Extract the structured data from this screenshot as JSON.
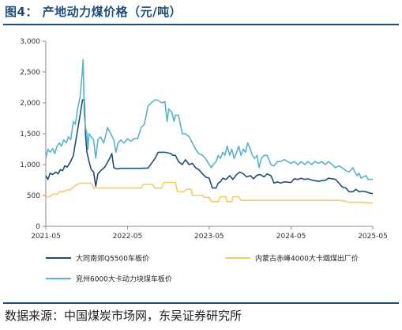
{
  "figure": {
    "title": "图4：  产地动力煤价格（元/吨）",
    "source": "数据来源：中国煤炭市场网，东吴证券研究所"
  },
  "chart_data": {
    "type": "line",
    "xlabel": "",
    "ylabel": "",
    "x_ticks": [
      "2021-05",
      "2022-05",
      "2023-05",
      "2024-05",
      "2025-05"
    ],
    "y_ticks": [
      "0",
      "500",
      "1,000",
      "1,500",
      "2,000",
      "2,500",
      "3,000"
    ],
    "ylim": [
      0,
      3000
    ],
    "xlim": [
      "2021-05-01",
      "2025-05-01"
    ],
    "grid": false,
    "legend_position": "bottom",
    "series": [
      {
        "name": "大同南郊Q5500车板价",
        "color": "#1f4e79",
        "points": [
          [
            "2021-05-01",
            820
          ],
          [
            "2021-05-10",
            760
          ],
          [
            "2021-05-20",
            860
          ],
          [
            "2021-06-01",
            840
          ],
          [
            "2021-06-15",
            880
          ],
          [
            "2021-06-25",
            850
          ],
          [
            "2021-07-05",
            920
          ],
          [
            "2021-07-15",
            900
          ],
          [
            "2021-07-25",
            980
          ],
          [
            "2021-08-05",
            960
          ],
          [
            "2021-08-20",
            1050
          ],
          [
            "2021-09-01",
            1150
          ],
          [
            "2021-09-15",
            1450
          ],
          [
            "2021-10-01",
            1800
          ],
          [
            "2021-10-12",
            2050
          ],
          [
            "2021-10-20",
            2060
          ],
          [
            "2021-10-25",
            1500
          ],
          [
            "2021-11-01",
            1200
          ],
          [
            "2021-11-10",
            1050
          ],
          [
            "2021-11-20",
            920
          ],
          [
            "2021-12-01",
            880
          ],
          [
            "2021-12-10",
            650
          ],
          [
            "2021-12-20",
            850
          ],
          [
            "2022-01-01",
            900
          ],
          [
            "2022-01-20",
            960
          ],
          [
            "2022-02-10",
            1100
          ],
          [
            "2022-02-20",
            1180
          ],
          [
            "2022-03-01",
            950
          ],
          [
            "2022-03-15",
            930
          ],
          [
            "2022-04-01",
            940
          ],
          [
            "2022-05-01",
            940
          ],
          [
            "2022-06-01",
            940
          ],
          [
            "2022-07-01",
            940
          ],
          [
            "2022-08-01",
            945
          ],
          [
            "2022-09-01",
            1100
          ],
          [
            "2022-09-15",
            1200
          ],
          [
            "2022-10-15",
            1200
          ],
          [
            "2022-11-10",
            1180
          ],
          [
            "2022-11-20",
            1150
          ],
          [
            "2022-12-01",
            1150
          ],
          [
            "2022-12-15",
            1050
          ],
          [
            "2023-01-01",
            1000
          ],
          [
            "2023-01-15",
            1080
          ],
          [
            "2023-02-01",
            1000
          ],
          [
            "2023-02-15",
            1020
          ],
          [
            "2023-03-01",
            950
          ],
          [
            "2023-03-15",
            920
          ],
          [
            "2023-04-01",
            850
          ],
          [
            "2023-04-15",
            800
          ],
          [
            "2023-05-01",
            780
          ],
          [
            "2023-05-15",
            620
          ],
          [
            "2023-06-01",
            620
          ],
          [
            "2023-06-10",
            700
          ],
          [
            "2023-06-20",
            720
          ],
          [
            "2023-07-01",
            780
          ],
          [
            "2023-07-15",
            760
          ],
          [
            "2023-08-01",
            820
          ],
          [
            "2023-08-15",
            760
          ],
          [
            "2023-09-01",
            840
          ],
          [
            "2023-09-15",
            880
          ],
          [
            "2023-10-01",
            850
          ],
          [
            "2023-10-15",
            800
          ],
          [
            "2023-11-01",
            820
          ],
          [
            "2023-11-15",
            770
          ],
          [
            "2023-12-01",
            830
          ],
          [
            "2023-12-15",
            840
          ],
          [
            "2024-01-01",
            800
          ],
          [
            "2024-01-15",
            850
          ],
          [
            "2024-02-01",
            820
          ],
          [
            "2024-02-15",
            700
          ],
          [
            "2024-03-01",
            720
          ],
          [
            "2024-03-15",
            700
          ],
          [
            "2024-04-01",
            720
          ],
          [
            "2024-05-01",
            710
          ],
          [
            "2024-05-15",
            770
          ],
          [
            "2024-06-01",
            760
          ],
          [
            "2024-06-15",
            780
          ],
          [
            "2024-07-01",
            760
          ],
          [
            "2024-07-15",
            770
          ],
          [
            "2024-08-01",
            750
          ],
          [
            "2024-08-15",
            740
          ],
          [
            "2024-09-01",
            730
          ],
          [
            "2024-09-15",
            740
          ],
          [
            "2024-10-01",
            745
          ],
          [
            "2024-10-15",
            780
          ],
          [
            "2024-11-01",
            770
          ],
          [
            "2024-11-15",
            760
          ],
          [
            "2024-12-01",
            700
          ],
          [
            "2024-12-15",
            640
          ],
          [
            "2025-01-01",
            620
          ],
          [
            "2025-01-15",
            560
          ],
          [
            "2025-02-01",
            560
          ],
          [
            "2025-02-15",
            600
          ],
          [
            "2025-03-01",
            560
          ],
          [
            "2025-03-15",
            570
          ],
          [
            "2025-04-01",
            560
          ],
          [
            "2025-04-15",
            540
          ],
          [
            "2025-05-01",
            530
          ]
        ]
      },
      {
        "name": "内蒙古赤峰4000大卡烟煤出厂价",
        "color": "#f2cd68",
        "points": [
          [
            "2021-05-01",
            480
          ],
          [
            "2021-05-20",
            480
          ],
          [
            "2021-06-01",
            520
          ],
          [
            "2021-06-20",
            520
          ],
          [
            "2021-07-01",
            560
          ],
          [
            "2021-07-20",
            560
          ],
          [
            "2021-08-01",
            590
          ],
          [
            "2021-08-20",
            590
          ],
          [
            "2021-09-01",
            640
          ],
          [
            "2021-09-20",
            680
          ],
          [
            "2021-10-01",
            700
          ],
          [
            "2021-11-20",
            700
          ],
          [
            "2021-12-01",
            620
          ],
          [
            "2022-07-01",
            620
          ],
          [
            "2022-07-10",
            680
          ],
          [
            "2022-08-20",
            680
          ],
          [
            "2022-09-01",
            620
          ],
          [
            "2022-10-01",
            620
          ],
          [
            "2022-10-10",
            710
          ],
          [
            "2022-12-01",
            710
          ],
          [
            "2022-12-10",
            560
          ],
          [
            "2023-01-10",
            560
          ],
          [
            "2023-01-20",
            600
          ],
          [
            "2023-02-10",
            600
          ],
          [
            "2023-02-15",
            500
          ],
          [
            "2023-04-01",
            500
          ],
          [
            "2023-04-10",
            470
          ],
          [
            "2023-05-01",
            470
          ],
          [
            "2023-05-10",
            400
          ],
          [
            "2023-06-10",
            400
          ],
          [
            "2023-06-20",
            480
          ],
          [
            "2023-07-15",
            480
          ],
          [
            "2023-07-20",
            400
          ],
          [
            "2023-08-10",
            400
          ],
          [
            "2023-08-15",
            480
          ],
          [
            "2023-09-10",
            480
          ],
          [
            "2023-09-20",
            420
          ],
          [
            "2023-11-01",
            420
          ],
          [
            "2024-03-01",
            420
          ],
          [
            "2024-06-01",
            420
          ],
          [
            "2024-09-01",
            420
          ],
          [
            "2024-12-01",
            420
          ],
          [
            "2025-01-01",
            410
          ],
          [
            "2025-01-10",
            390
          ],
          [
            "2025-03-01",
            390
          ],
          [
            "2025-05-01",
            380
          ]
        ]
      },
      {
        "name": "兖州6000大卡动力块煤车板价",
        "color": "#5ab3c7",
        "points": [
          [
            "2021-05-01",
            1100
          ],
          [
            "2021-05-10",
            1250
          ],
          [
            "2021-05-20",
            1200
          ],
          [
            "2021-06-01",
            1260
          ],
          [
            "2021-06-10",
            1180
          ],
          [
            "2021-06-20",
            1300
          ],
          [
            "2021-07-01",
            1350
          ],
          [
            "2021-07-10",
            1300
          ],
          [
            "2021-07-20",
            1400
          ],
          [
            "2021-08-01",
            1350
          ],
          [
            "2021-08-10",
            1450
          ],
          [
            "2021-08-20",
            1400
          ],
          [
            "2021-09-01",
            1700
          ],
          [
            "2021-09-10",
            1650
          ],
          [
            "2021-09-20",
            1900
          ],
          [
            "2021-10-01",
            2100
          ],
          [
            "2021-10-10",
            2450
          ],
          [
            "2021-10-15",
            2700
          ],
          [
            "2021-10-20",
            1800
          ],
          [
            "2021-10-25",
            1600
          ],
          [
            "2021-11-01",
            1500
          ],
          [
            "2021-11-05",
            1250
          ],
          [
            "2021-11-10",
            1500
          ],
          [
            "2021-11-20",
            1450
          ],
          [
            "2021-12-01",
            1400
          ],
          [
            "2021-12-10",
            1100
          ],
          [
            "2021-12-20",
            1400
          ],
          [
            "2022-01-01",
            1450
          ],
          [
            "2022-01-15",
            1350
          ],
          [
            "2022-02-01",
            1600
          ],
          [
            "2022-02-15",
            1500
          ],
          [
            "2022-03-01",
            1400
          ],
          [
            "2022-03-10",
            1200
          ],
          [
            "2022-03-20",
            1350
          ],
          [
            "2022-04-01",
            1400
          ],
          [
            "2022-04-15",
            1350
          ],
          [
            "2022-05-01",
            1420
          ],
          [
            "2022-05-15",
            1380
          ],
          [
            "2022-06-01",
            1420
          ],
          [
            "2022-06-15",
            1420
          ],
          [
            "2022-07-01",
            1600
          ],
          [
            "2022-07-15",
            1650
          ],
          [
            "2022-08-01",
            1950
          ],
          [
            "2022-08-15",
            2000
          ],
          [
            "2022-09-01",
            2050
          ],
          [
            "2022-09-15",
            2040
          ],
          [
            "2022-10-01",
            2000
          ],
          [
            "2022-10-15",
            2020
          ],
          [
            "2022-10-25",
            1700
          ],
          [
            "2022-11-01",
            1900
          ],
          [
            "2022-11-15",
            1850
          ],
          [
            "2022-11-25",
            1700
          ],
          [
            "2022-12-01",
            1800
          ],
          [
            "2022-12-15",
            1800
          ],
          [
            "2023-01-01",
            1500
          ],
          [
            "2023-01-15",
            1500
          ],
          [
            "2023-02-01",
            1450
          ],
          [
            "2023-02-15",
            1350
          ],
          [
            "2023-03-01",
            1250
          ],
          [
            "2023-03-15",
            1180
          ],
          [
            "2023-04-01",
            1150
          ],
          [
            "2023-04-15",
            1100
          ],
          [
            "2023-05-01",
            1000
          ],
          [
            "2023-05-10",
            950
          ],
          [
            "2023-05-20",
            1000
          ],
          [
            "2023-06-01",
            1050
          ],
          [
            "2023-06-10",
            1150
          ],
          [
            "2023-06-20",
            1100
          ],
          [
            "2023-07-01",
            1200
          ],
          [
            "2023-07-10",
            1150
          ],
          [
            "2023-07-20",
            1300
          ],
          [
            "2023-08-01",
            1150
          ],
          [
            "2023-08-10",
            1250
          ],
          [
            "2023-08-20",
            1100
          ],
          [
            "2023-09-01",
            1200
          ],
          [
            "2023-09-10",
            1300
          ],
          [
            "2023-09-20",
            1150
          ],
          [
            "2023-10-01",
            1250
          ],
          [
            "2023-10-10",
            1200
          ],
          [
            "2023-10-20",
            1350
          ],
          [
            "2023-11-01",
            1250
          ],
          [
            "2023-11-10",
            1150
          ],
          [
            "2023-11-20",
            1100
          ],
          [
            "2023-12-01",
            1150
          ],
          [
            "2023-12-10",
            950
          ],
          [
            "2023-12-20",
            1100
          ],
          [
            "2024-01-01",
            1150
          ],
          [
            "2024-01-15",
            1150
          ],
          [
            "2024-02-01",
            1000
          ],
          [
            "2024-02-15",
            980
          ],
          [
            "2024-03-01",
            1050
          ],
          [
            "2024-03-15",
            1050
          ],
          [
            "2024-04-01",
            1080
          ],
          [
            "2024-04-15",
            1050
          ],
          [
            "2024-05-01",
            1020
          ],
          [
            "2024-05-15",
            1050
          ],
          [
            "2024-06-01",
            1000
          ],
          [
            "2024-06-15",
            1050
          ],
          [
            "2024-07-01",
            1000
          ],
          [
            "2024-07-15",
            1050
          ],
          [
            "2024-08-01",
            1000
          ],
          [
            "2024-08-15",
            1050
          ],
          [
            "2024-09-01",
            1020
          ],
          [
            "2024-09-15",
            1050
          ],
          [
            "2024-10-01",
            1000
          ],
          [
            "2024-10-15",
            1050
          ],
          [
            "2024-11-01",
            1000
          ],
          [
            "2024-11-15",
            950
          ],
          [
            "2024-12-01",
            980
          ],
          [
            "2024-12-15",
            950
          ],
          [
            "2025-01-01",
            900
          ],
          [
            "2025-01-15",
            880
          ],
          [
            "2025-02-01",
            950
          ],
          [
            "2025-02-10",
            880
          ],
          [
            "2025-02-20",
            820
          ],
          [
            "2025-03-01",
            860
          ],
          [
            "2025-03-10",
            780
          ],
          [
            "2025-03-20",
            800
          ],
          [
            "2025-04-01",
            820
          ],
          [
            "2025-04-10",
            760
          ],
          [
            "2025-04-20",
            760
          ],
          [
            "2025-05-01",
            760
          ]
        ]
      }
    ]
  }
}
